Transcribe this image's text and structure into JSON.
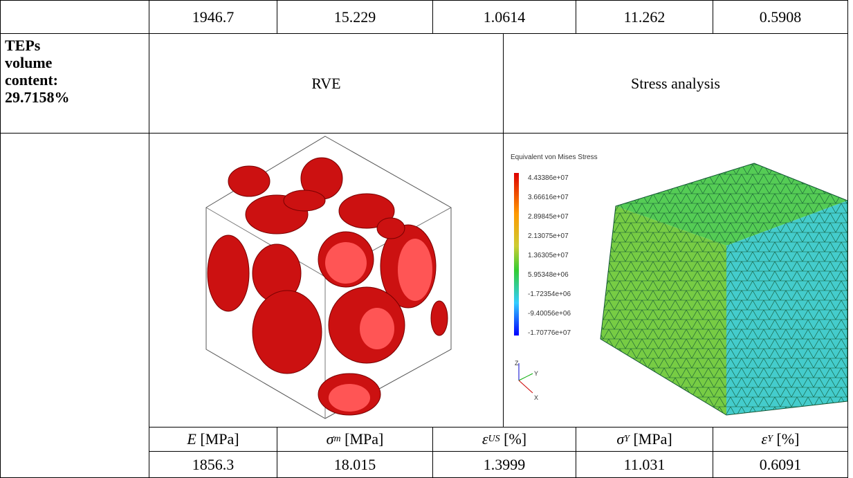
{
  "table": {
    "top_row": [
      "1946.7",
      "15.229",
      "1.0614",
      "11.262",
      "0.5908"
    ],
    "label": "TEPs volume content: 29.7158%",
    "headers": [
      "RVE",
      "Stress analysis"
    ],
    "legend": {
      "title": "Equivalent von Mises Stress",
      "values": [
        "4.43386e+07",
        "3.66616e+07",
        "2.89845e+07",
        "2.13075e+07",
        "1.36305e+07",
        "5.95348e+06",
        "-1.72354e+06",
        "-9.40056e+06",
        "-1.70776e+07"
      ]
    },
    "axes": [
      "Z",
      "Y",
      "X"
    ],
    "quantities": [
      {
        "symbol": "E",
        "unit": "[MPa]"
      },
      {
        "symbol": "σ",
        "sub": "m",
        "unit": "[MPa]"
      },
      {
        "symbol": "ε",
        "sub": "US",
        "unit": "[%]"
      },
      {
        "symbol": "σ",
        "sub": "Y",
        "unit": "[MPa]"
      },
      {
        "symbol": "ε",
        "sub": "Y",
        "unit": "[%]"
      }
    ],
    "bottom_row": [
      "1856.3",
      "18.015",
      "1.3999",
      "11.031",
      "0.6091"
    ]
  }
}
